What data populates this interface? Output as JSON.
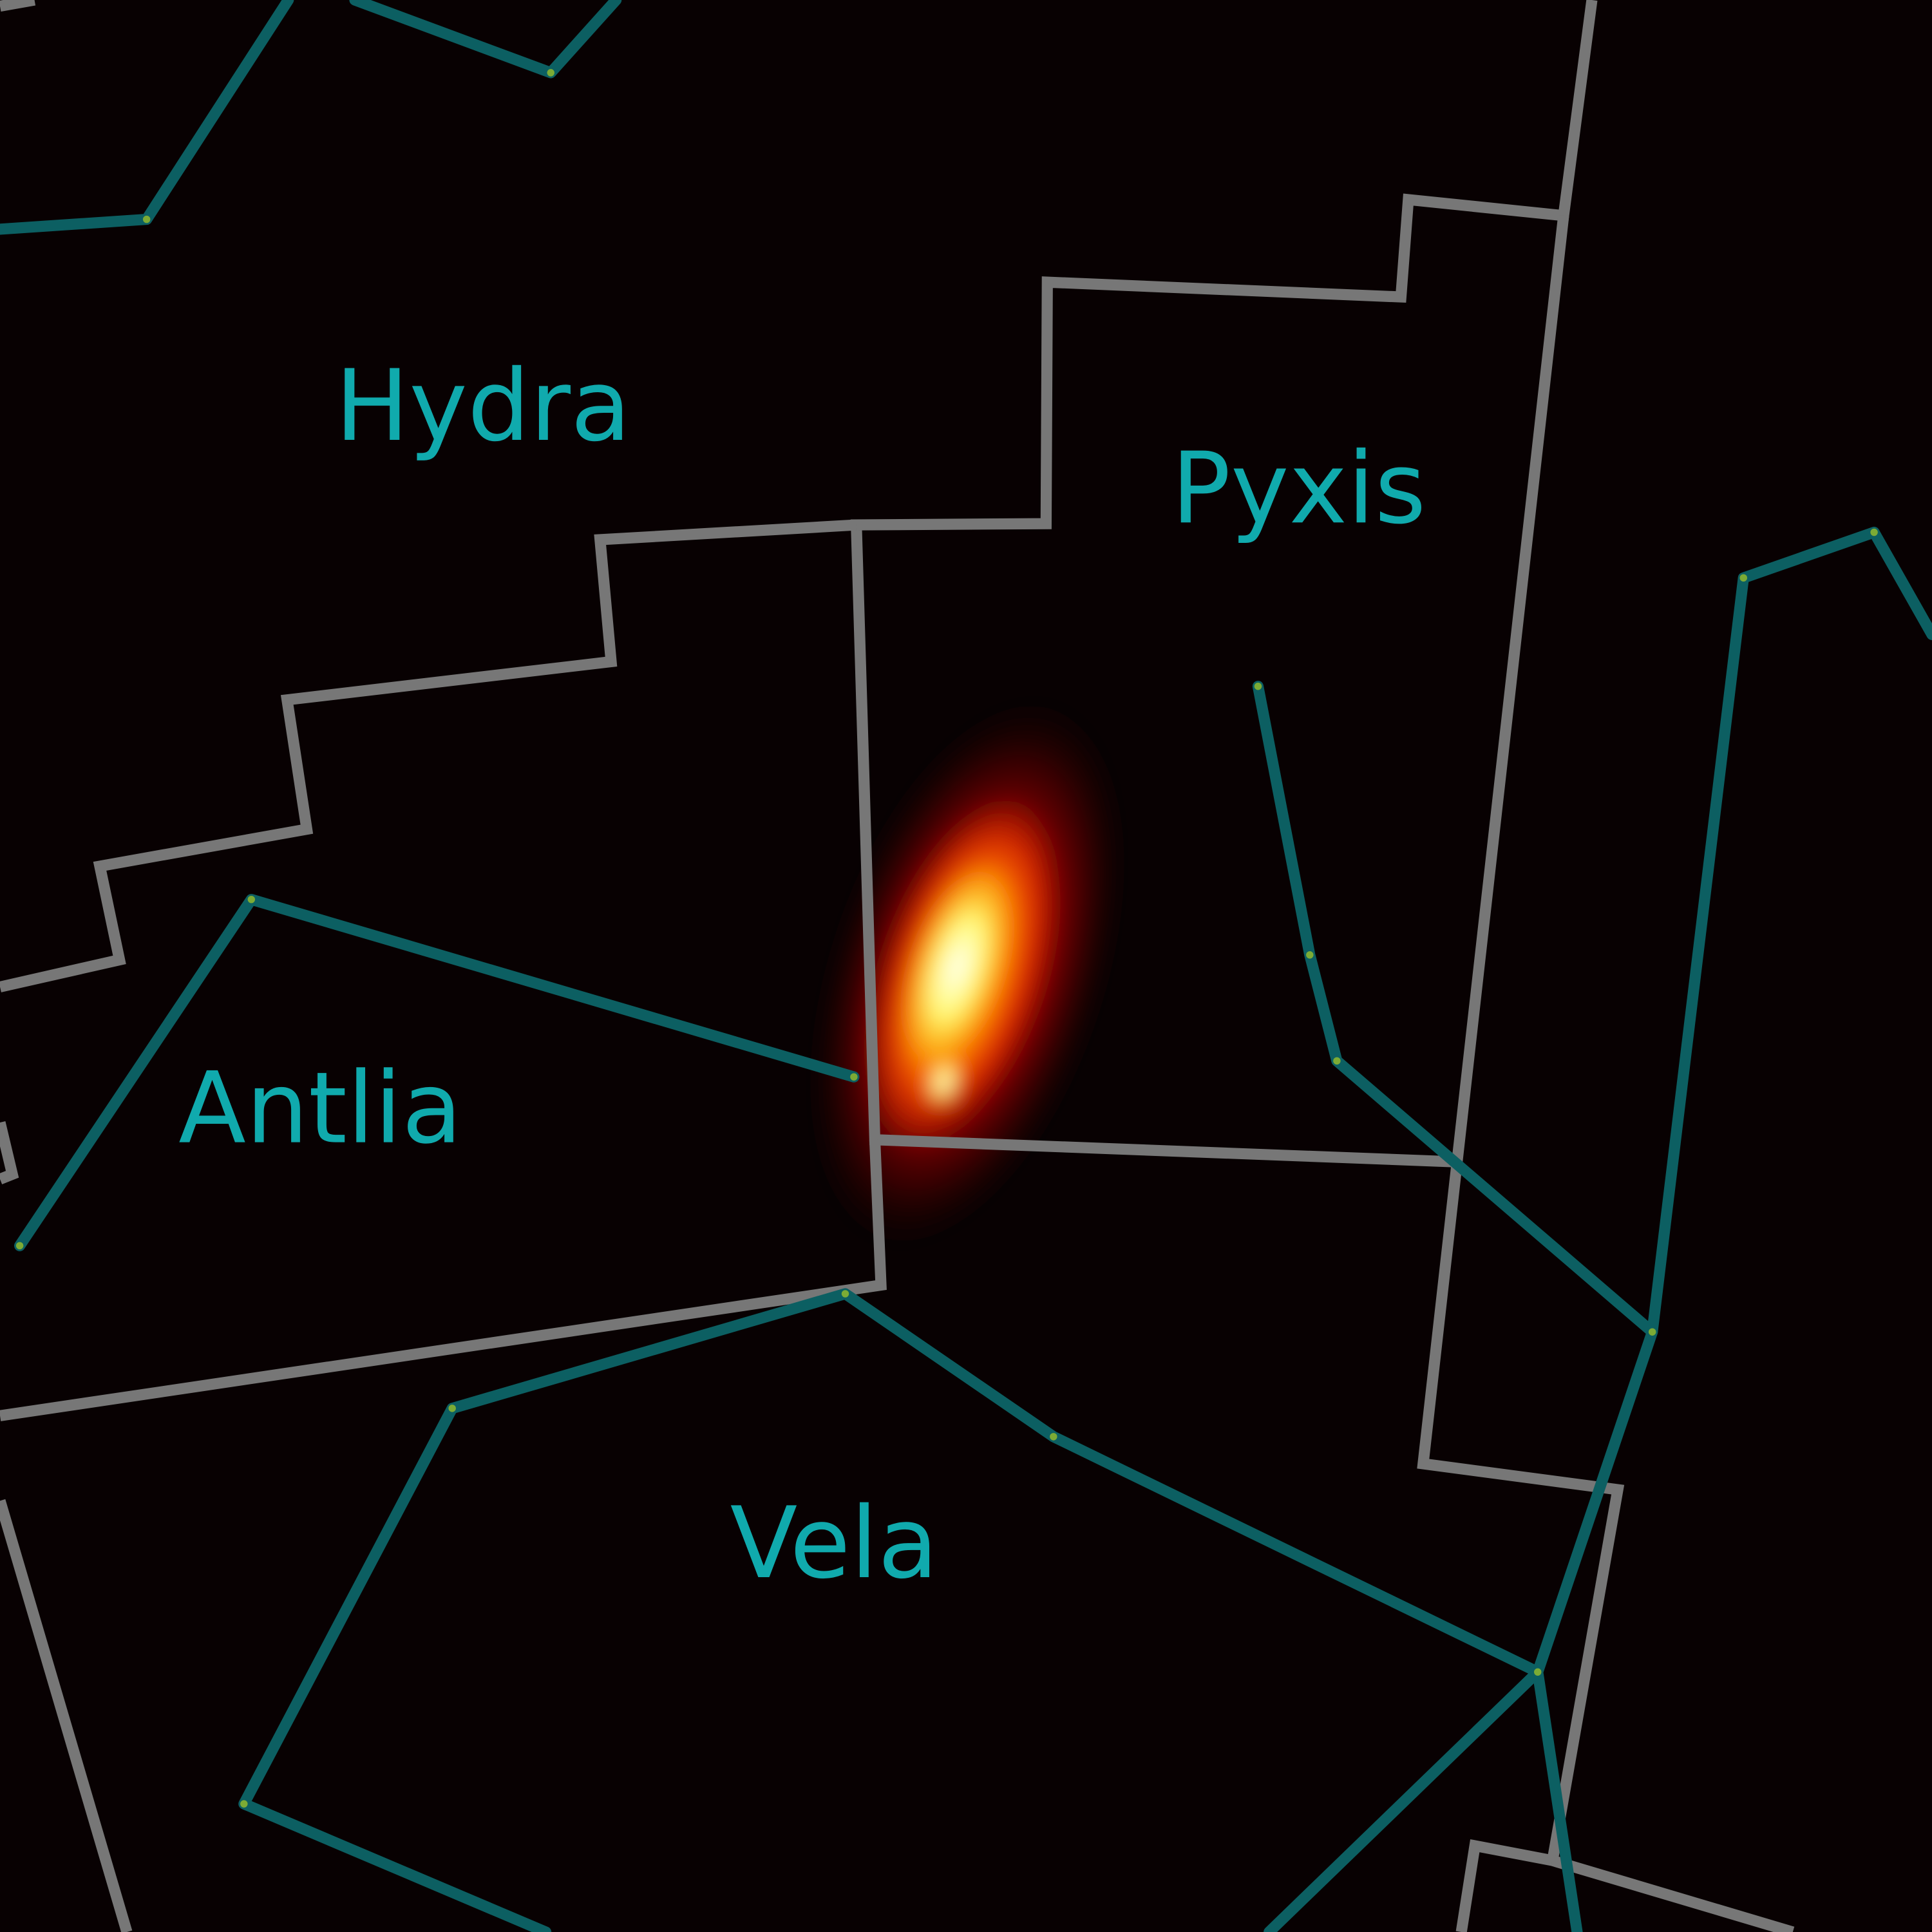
{
  "map": {
    "background": "#080102",
    "boundary_color": "#777777",
    "figure_color": "#0c5f62",
    "label_color": "#10aaad",
    "star_color": "#7cab35",
    "hotspot_colormap": "hot (black-red-yellow-white)"
  },
  "constellations": {
    "hydra": "Hydra",
    "pyxis": "Pyxis",
    "antlia": "Antlia",
    "vela": "Vela"
  }
}
